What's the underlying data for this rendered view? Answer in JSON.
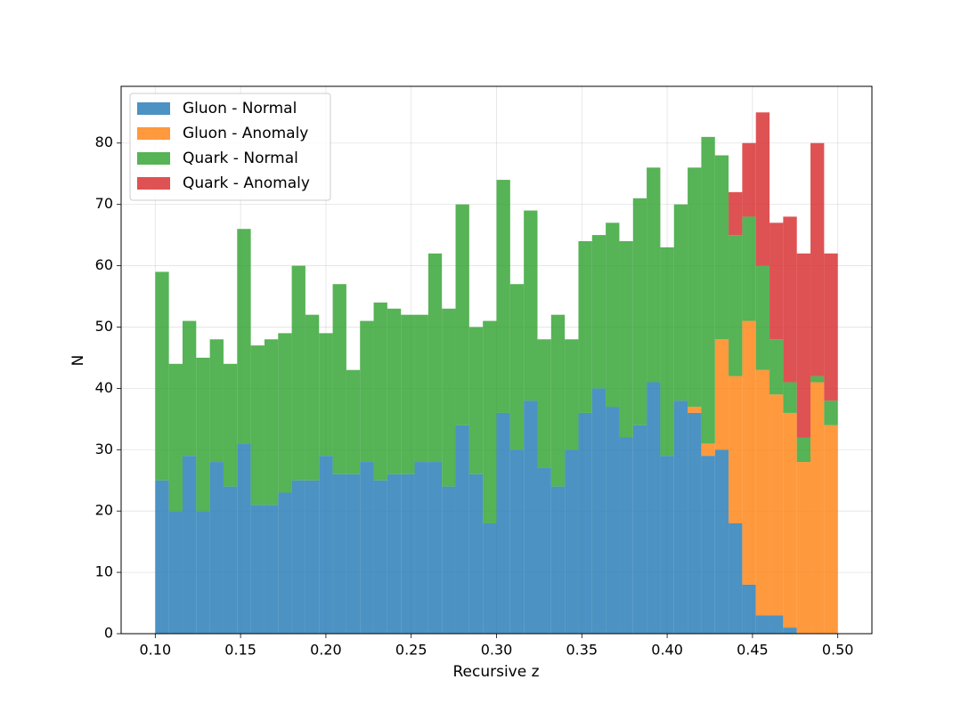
{
  "chart_data": {
    "type": "stacked-histogram",
    "xlabel": "Recursive z",
    "ylabel": "N",
    "bins": [
      0.1,
      0.108,
      0.116,
      0.124,
      0.132,
      0.14,
      0.148,
      0.156,
      0.164,
      0.172,
      0.18,
      0.188,
      0.196,
      0.204,
      0.212,
      0.22,
      0.228,
      0.236,
      0.244,
      0.252,
      0.26,
      0.268,
      0.276,
      0.284,
      0.292,
      0.3,
      0.308,
      0.316,
      0.324,
      0.332,
      0.34,
      0.348,
      0.356,
      0.364,
      0.372,
      0.38,
      0.388,
      0.396,
      0.404,
      0.412,
      0.42,
      0.428,
      0.436,
      0.444,
      0.452,
      0.46,
      0.468,
      0.476,
      0.484,
      0.492,
      0.5
    ],
    "series": [
      {
        "name": "Gluon - Normal",
        "color": "#1f77b4",
        "values": [
          25,
          20,
          29,
          20,
          28,
          24,
          31,
          21,
          21,
          23,
          25,
          25,
          29,
          26,
          26,
          28,
          25,
          26,
          26,
          28,
          28,
          24,
          34,
          26,
          18,
          36,
          30,
          38,
          27,
          24,
          30,
          36,
          40,
          37,
          32,
          34,
          41,
          29,
          38,
          36,
          29,
          30,
          18,
          8,
          3,
          3,
          1,
          0,
          0,
          0
        ]
      },
      {
        "name": "Gluon - Anomaly",
        "color": "#ff7f0e",
        "values": [
          0,
          0,
          0,
          0,
          0,
          0,
          0,
          0,
          0,
          0,
          0,
          0,
          0,
          0,
          0,
          0,
          0,
          0,
          0,
          0,
          0,
          0,
          0,
          0,
          0,
          0,
          0,
          0,
          0,
          0,
          0,
          0,
          0,
          0,
          0,
          0,
          0,
          0,
          0,
          1,
          2,
          18,
          24,
          43,
          40,
          36,
          35,
          28,
          41,
          34
        ]
      },
      {
        "name": "Quark - Normal",
        "color": "#2ca02c",
        "values": [
          34,
          24,
          22,
          25,
          20,
          20,
          35,
          26,
          27,
          26,
          35,
          27,
          20,
          31,
          17,
          23,
          29,
          27,
          26,
          24,
          34,
          29,
          36,
          24,
          33,
          38,
          27,
          31,
          21,
          28,
          18,
          28,
          25,
          30,
          32,
          37,
          35,
          34,
          32,
          39,
          50,
          30,
          23,
          17,
          17,
          9,
          5,
          4,
          1,
          4
        ]
      },
      {
        "name": "Quark - Anomaly",
        "color": "#d62728",
        "values": [
          0,
          0,
          0,
          0,
          0,
          0,
          0,
          0,
          0,
          0,
          0,
          0,
          0,
          0,
          0,
          0,
          0,
          0,
          0,
          0,
          0,
          0,
          0,
          0,
          0,
          0,
          0,
          0,
          0,
          0,
          0,
          0,
          0,
          0,
          0,
          0,
          0,
          0,
          0,
          0,
          0,
          0,
          7,
          12,
          25,
          19,
          27,
          30,
          38,
          24
        ]
      }
    ],
    "xlim": [
      0.08,
      0.52
    ],
    "ylim": [
      0,
      89.25
    ],
    "xticks": [
      {
        "value": 0.1,
        "label": "0.10"
      },
      0.15,
      {
        "value": 0.2,
        "label": "0.20"
      },
      0.25,
      {
        "value": 0.3,
        "label": "0.30"
      },
      0.35,
      {
        "value": 0.4,
        "label": "0.40"
      },
      0.45,
      {
        "value": 0.5,
        "label": "0.50"
      }
    ],
    "yticks": [
      0,
      10,
      20,
      30,
      40,
      50,
      60,
      70,
      80
    ],
    "grid": true,
    "legend": "upper-left",
    "alpha": 0.8
  }
}
